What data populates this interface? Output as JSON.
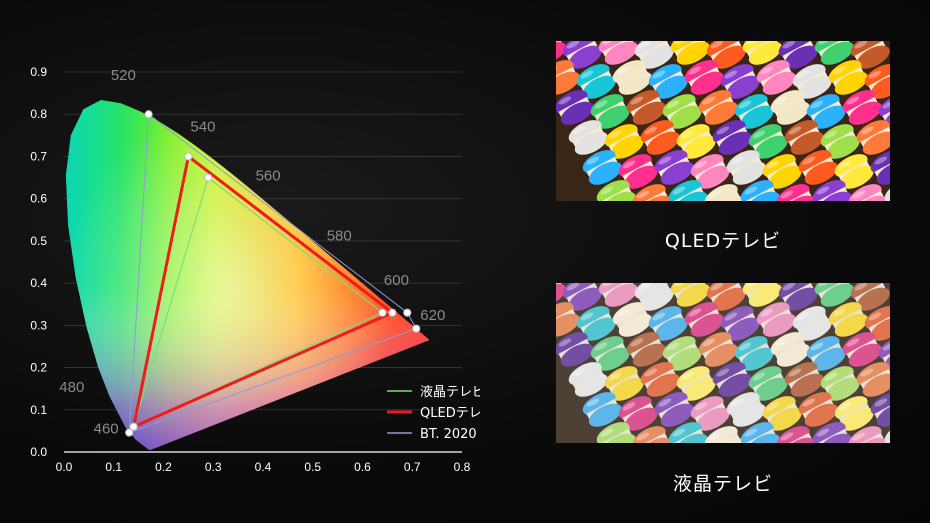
{
  "chart_data": {
    "type": "scatter",
    "title": "",
    "xlabel": "",
    "ylabel": "",
    "xlim": [
      0.0,
      0.8
    ],
    "ylim": [
      0.0,
      0.9
    ],
    "x_ticks": [
      "0.0",
      "0.1",
      "0.2",
      "0.3",
      "0.4",
      "0.5",
      "0.6",
      "0.7",
      "0.8"
    ],
    "y_ticks": [
      "0.0",
      "0.1",
      "0.2",
      "0.3",
      "0.4",
      "0.5",
      "0.6",
      "0.7",
      "0.8",
      "0.9"
    ],
    "grid": true,
    "legend_position": "bottom-right",
    "wavelength_labels": [
      {
        "label": "460",
        "x": 0.144,
        "y": 0.03
      },
      {
        "label": "480",
        "x": 0.091,
        "y": 0.133
      },
      {
        "label": "520",
        "x": 0.074,
        "y": 0.834
      },
      {
        "label": "540",
        "x": 0.23,
        "y": 0.754
      },
      {
        "label": "560",
        "x": 0.373,
        "y": 0.624
      },
      {
        "label": "580",
        "x": 0.512,
        "y": 0.487
      },
      {
        "label": "600",
        "x": 0.627,
        "y": 0.372
      },
      {
        "label": "620",
        "x": 0.692,
        "y": 0.308
      }
    ],
    "spectral_locus": [
      [
        0.1741,
        0.005
      ],
      [
        0.173,
        0.0048
      ],
      [
        0.1714,
        0.0051
      ],
      [
        0.1689,
        0.0069
      ],
      [
        0.1644,
        0.0109
      ],
      [
        0.1566,
        0.0177
      ],
      [
        0.144,
        0.0297
      ],
      [
        0.1241,
        0.0578
      ],
      [
        0.0913,
        0.1327
      ],
      [
        0.0687,
        0.2007
      ],
      [
        0.0454,
        0.295
      ],
      [
        0.0235,
        0.4127
      ],
      [
        0.0082,
        0.5384
      ],
      [
        0.0039,
        0.6548
      ],
      [
        0.0139,
        0.7502
      ],
      [
        0.0389,
        0.812
      ],
      [
        0.0743,
        0.8338
      ],
      [
        0.1142,
        0.8262
      ],
      [
        0.1547,
        0.8059
      ],
      [
        0.1929,
        0.7816
      ],
      [
        0.2296,
        0.7543
      ],
      [
        0.2658,
        0.7243
      ],
      [
        0.3016,
        0.6923
      ],
      [
        0.3373,
        0.6589
      ],
      [
        0.3731,
        0.6245
      ],
      [
        0.4087,
        0.5896
      ],
      [
        0.4441,
        0.5547
      ],
      [
        0.4788,
        0.5202
      ],
      [
        0.5125,
        0.4866
      ],
      [
        0.5448,
        0.4544
      ],
      [
        0.5752,
        0.4242
      ],
      [
        0.6029,
        0.3965
      ],
      [
        0.627,
        0.3725
      ],
      [
        0.6482,
        0.3514
      ],
      [
        0.6658,
        0.334
      ],
      [
        0.6801,
        0.3197
      ],
      [
        0.6915,
        0.3083
      ],
      [
        0.7006,
        0.2993
      ],
      [
        0.7079,
        0.292
      ],
      [
        0.714,
        0.2859
      ],
      [
        0.719,
        0.2809
      ],
      [
        0.723,
        0.277
      ],
      [
        0.726,
        0.274
      ],
      [
        0.7283,
        0.2717
      ],
      [
        0.73,
        0.27
      ],
      [
        0.7347,
        0.2653
      ]
    ],
    "series": [
      {
        "name": "液晶テレビ",
        "color": "#7fdc74",
        "points": [
          [
            0.29,
            0.65
          ],
          [
            0.64,
            0.33
          ],
          [
            0.14,
            0.06
          ]
        ]
      },
      {
        "name": "QLEDテレビ",
        "color": "#ee1c1c",
        "points": [
          [
            0.25,
            0.7
          ],
          [
            0.66,
            0.33
          ],
          [
            0.14,
            0.06
          ]
        ]
      },
      {
        "name": "BT. 2020",
        "color": "#8f9ad6",
        "points": [
          [
            0.17,
            0.8
          ],
          [
            0.69,
            0.33
          ],
          [
            0.708,
            0.292
          ],
          [
            0.131,
            0.046
          ]
        ]
      }
    ],
    "legend": [
      {
        "name": "液晶テレビ",
        "color": "#7fdc74"
      },
      {
        "name": "QLEDテレビ",
        "color": "#ee1c1c"
      },
      {
        "name": "BT. 2020",
        "color": "#8f9ad6"
      }
    ]
  },
  "panels": {
    "top_caption": "QLEDテレビ",
    "bottom_caption": "液晶テレビ"
  },
  "colors": {
    "background": "#0b0b0b",
    "tick_text": "#ffffff",
    "wavelength_text": "#8a8a8a",
    "grid": "#3a3a3a"
  }
}
